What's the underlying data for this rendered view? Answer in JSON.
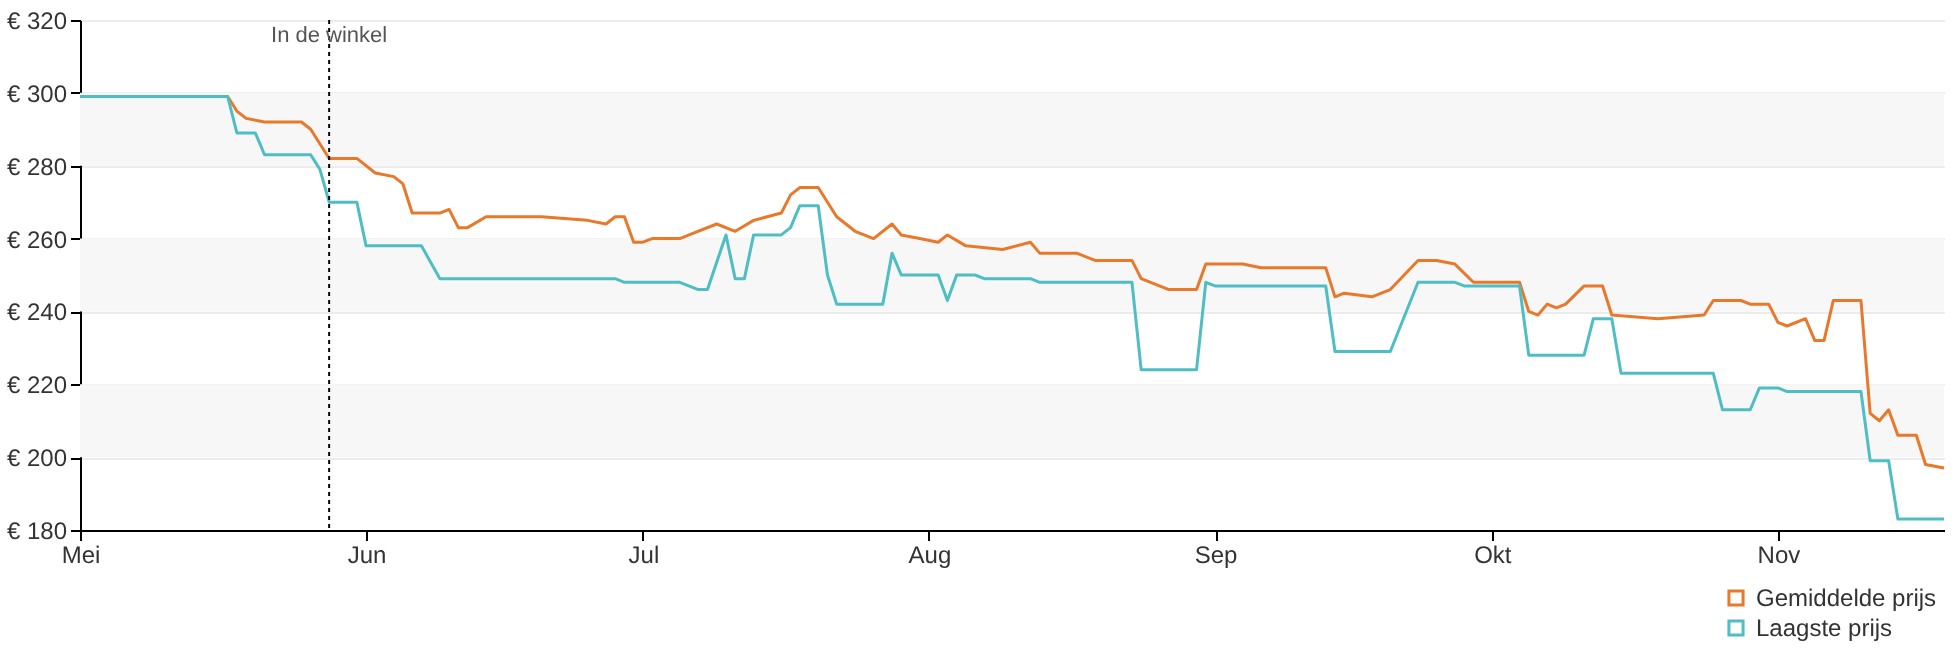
{
  "chart_data": {
    "type": "line",
    "xlim": [
      "--05-01",
      "--11-19"
    ],
    "xticks": [
      {
        "value": "--05-01",
        "label": "Mei"
      },
      {
        "value": "--06-01",
        "label": "Jun"
      },
      {
        "value": "--07-01",
        "label": "Jul"
      },
      {
        "value": "--08-01",
        "label": "Aug"
      },
      {
        "value": "--09-01",
        "label": "Sep"
      },
      {
        "value": "--10-01",
        "label": "Okt"
      },
      {
        "value": "--11-01",
        "label": "Nov"
      }
    ],
    "ylim": [
      180,
      320
    ],
    "yticks": [
      {
        "value": 180,
        "label": "€ 180"
      },
      {
        "value": 200,
        "label": "€ 200"
      },
      {
        "value": 220,
        "label": "€ 220"
      },
      {
        "value": 240,
        "label": "€ 240"
      },
      {
        "value": 260,
        "label": "€ 260"
      },
      {
        "value": 280,
        "label": "€ 280"
      },
      {
        "value": 300,
        "label": "€ 300"
      },
      {
        "value": 320,
        "label": "€ 320"
      }
    ],
    "grid": "y",
    "legend": "bottom right",
    "ref_lines": [
      {
        "axis": "x",
        "value": "--05-28",
        "label": "In de winkel",
        "line_style": "dotted",
        "color": "#000000"
      }
    ],
    "series": [
      {
        "name": "Gemiddelde prijs",
        "color": "#e8792b",
        "x": [
          "--05-01",
          "--05-17",
          "--05-18",
          "--05-19",
          "--05-21",
          "--05-25",
          "--05-26",
          "--05-28",
          "--05-31",
          "--06-02",
          "--06-04",
          "--06-05",
          "--06-06",
          "--06-09",
          "--06-10",
          "--06-11",
          "--06-12",
          "--06-14",
          "--06-20",
          "--06-25",
          "--06-27",
          "--06-28",
          "--06-29",
          "--06-30",
          "--07-01",
          "--07-02",
          "--07-05",
          "--07-06",
          "--07-09",
          "--07-11",
          "--07-13",
          "--07-16",
          "--07-17",
          "--07-18",
          "--07-20",
          "--07-22",
          "--07-24",
          "--07-26",
          "--07-28",
          "--07-29",
          "--07-31",
          "--08-02",
          "--08-03",
          "--08-05",
          "--08-09",
          "--08-12",
          "--08-13",
          "--08-17",
          "--08-19",
          "--08-23",
          "--08-24",
          "--08-27",
          "--08-30",
          "--08-31",
          "--09-04",
          "--09-06",
          "--09-13",
          "--09-14",
          "--09-15",
          "--09-18",
          "--09-20",
          "--09-23",
          "--09-25",
          "--09-27",
          "--09-29",
          "--10-04",
          "--10-05",
          "--10-06",
          "--10-07",
          "--10-08",
          "--10-09",
          "--10-11",
          "--10-13",
          "--10-14",
          "--10-19",
          "--10-24",
          "--10-25",
          "--10-28",
          "--10-29",
          "--10-31",
          "--11-01",
          "--11-02",
          "--11-04",
          "--11-05",
          "--11-06",
          "--11-07",
          "--11-10",
          "--11-11",
          "--11-12",
          "--11-13",
          "--11-14",
          "--11-16",
          "--11-17",
          "--11-19"
        ],
        "values": [
          299,
          299,
          295,
          293,
          292,
          292,
          290,
          282,
          282,
          278,
          277,
          275,
          267,
          267,
          268,
          263,
          263,
          266,
          266,
          265,
          264,
          266,
          266,
          259,
          259,
          260,
          260,
          261,
          264,
          262,
          265,
          267,
          272,
          274,
          274,
          266,
          262,
          260,
          264,
          261,
          260,
          259,
          261,
          258,
          257,
          259,
          256,
          256,
          254,
          254,
          249,
          246,
          246,
          253,
          253,
          252,
          252,
          244,
          245,
          244,
          246,
          254,
          254,
          253,
          248,
          248,
          240,
          239,
          242,
          241,
          242,
          247,
          247,
          239,
          238,
          239,
          243,
          243,
          242,
          242,
          237,
          236,
          238,
          232,
          232,
          243,
          243,
          212,
          210,
          213,
          206,
          206,
          198,
          197
        ]
      },
      {
        "name": "Laagste prijs",
        "color": "#4fbdc4",
        "x": [
          "--05-01",
          "--05-17",
          "--05-18",
          "--05-20",
          "--05-21",
          "--05-26",
          "--05-27",
          "--05-28",
          "--05-31",
          "--06-01",
          "--06-07",
          "--06-09",
          "--06-28",
          "--06-29",
          "--07-05",
          "--07-07",
          "--07-08",
          "--07-10",
          "--07-11",
          "--07-12",
          "--07-13",
          "--07-16",
          "--07-17",
          "--07-18",
          "--07-20",
          "--07-21",
          "--07-22",
          "--07-27",
          "--07-28",
          "--07-29",
          "--07-30",
          "--08-02",
          "--08-03",
          "--08-04",
          "--08-06",
          "--08-07",
          "--08-12",
          "--08-13",
          "--08-23",
          "--08-24",
          "--08-30",
          "--08-31",
          "--09-01",
          "--09-13",
          "--09-14",
          "--09-20",
          "--09-23",
          "--09-27",
          "--09-28",
          "--10-04",
          "--10-05",
          "--10-11",
          "--10-12",
          "--10-14",
          "--10-15",
          "--10-25",
          "--10-26",
          "--10-29",
          "--10-30",
          "--11-01",
          "--11-02",
          "--11-10",
          "--11-11",
          "--11-13",
          "--11-14",
          "--11-19"
        ],
        "values": [
          299,
          299,
          289,
          289,
          283,
          283,
          279,
          270,
          270,
          258,
          258,
          249,
          249,
          248,
          248,
          246,
          246,
          261,
          249,
          249,
          261,
          261,
          263,
          269,
          269,
          250,
          242,
          242,
          256,
          250,
          250,
          250,
          243,
          250,
          250,
          249,
          249,
          248,
          248,
          224,
          224,
          248,
          247,
          247,
          229,
          229,
          248,
          248,
          247,
          247,
          228,
          228,
          238,
          238,
          223,
          223,
          213,
          213,
          219,
          219,
          218,
          218,
          199,
          199,
          183,
          183
        ]
      }
    ]
  }
}
